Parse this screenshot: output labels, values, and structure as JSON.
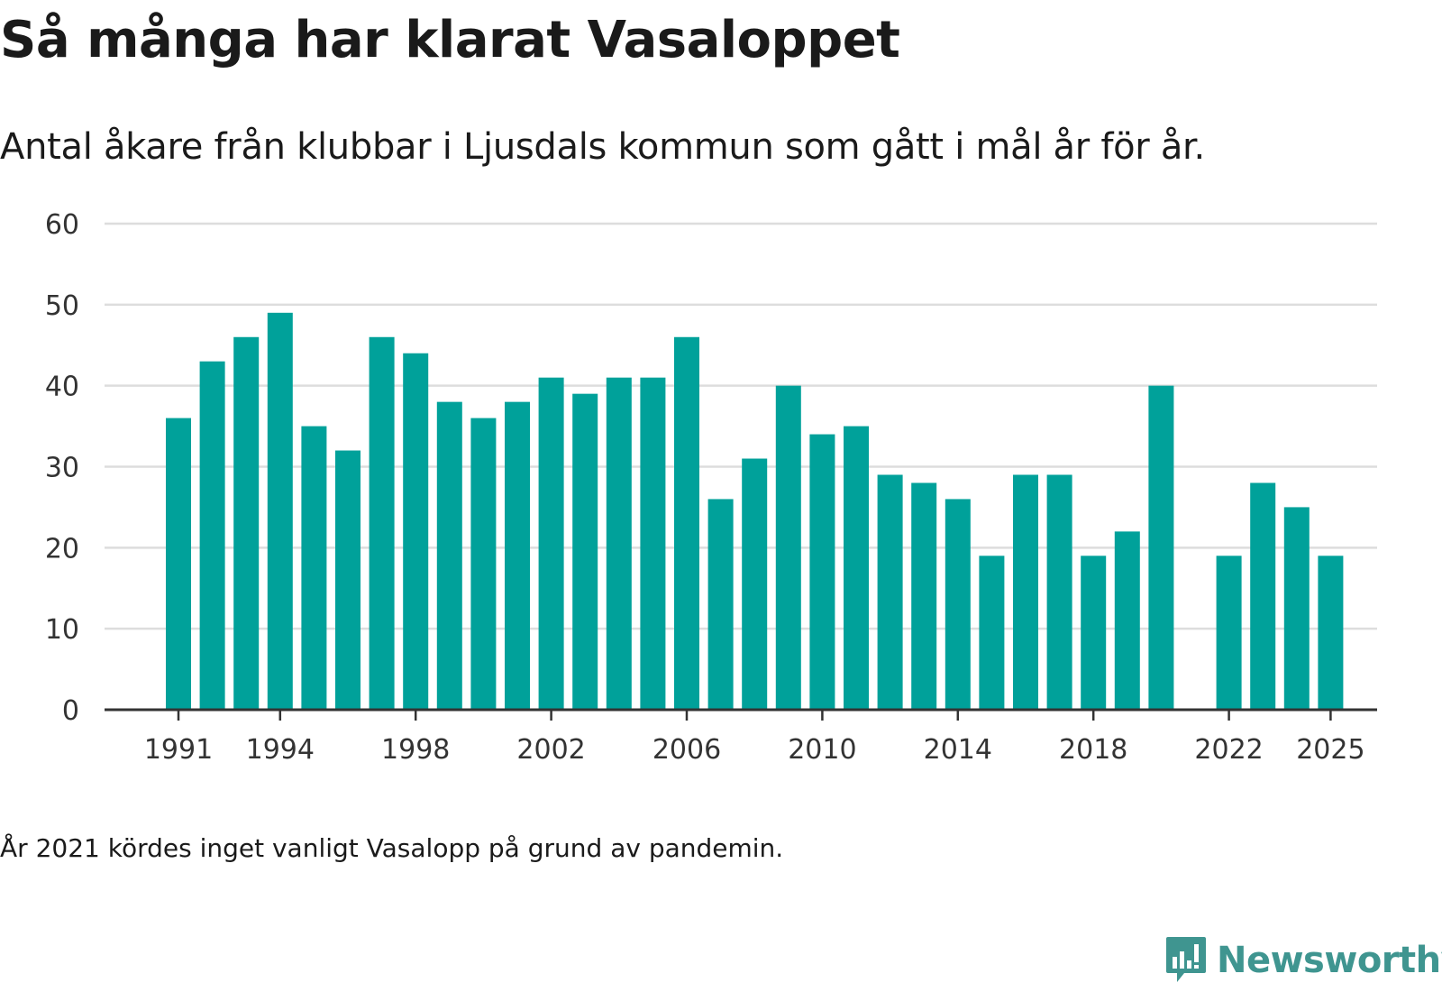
{
  "header": {
    "title": "Så många har klarat Vasaloppet",
    "subtitle": "Antal åkare från klubbar i Ljusdals kommun som gått i mål år för år."
  },
  "footer": {
    "note": "År 2021 kördes inget vanligt Vasalopp på grund av pandemin.",
    "brand": "Newsworthy"
  },
  "colors": {
    "bar": "#00a19a",
    "grid": "#dddddd",
    "axis": "#333333",
    "brand": "#3f9590"
  },
  "chart_data": {
    "type": "bar",
    "title": "Så många har klarat Vasaloppet",
    "subtitle": "Antal åkare från klubbar i Ljusdals kommun som gått i mål år för år.",
    "xlabel": "",
    "ylabel": "",
    "ylim": [
      0,
      60
    ],
    "yticks": [
      0,
      10,
      20,
      30,
      40,
      50,
      60
    ],
    "xtick_labels": [
      1991,
      1994,
      1998,
      2002,
      2006,
      2010,
      2014,
      2018,
      2022,
      2025
    ],
    "grid": true,
    "categories": [
      1991,
      1992,
      1993,
      1994,
      1995,
      1996,
      1997,
      1998,
      1999,
      2000,
      2001,
      2002,
      2003,
      2004,
      2005,
      2006,
      2007,
      2008,
      2009,
      2010,
      2011,
      2012,
      2013,
      2014,
      2015,
      2016,
      2017,
      2018,
      2019,
      2020,
      2021,
      2022,
      2023,
      2024,
      2025
    ],
    "values": [
      36,
      43,
      46,
      49,
      35,
      32,
      46,
      44,
      38,
      36,
      38,
      41,
      39,
      41,
      41,
      46,
      26,
      31,
      40,
      34,
      35,
      29,
      28,
      26,
      19,
      29,
      29,
      19,
      22,
      40,
      null,
      19,
      28,
      25,
      19
    ]
  }
}
